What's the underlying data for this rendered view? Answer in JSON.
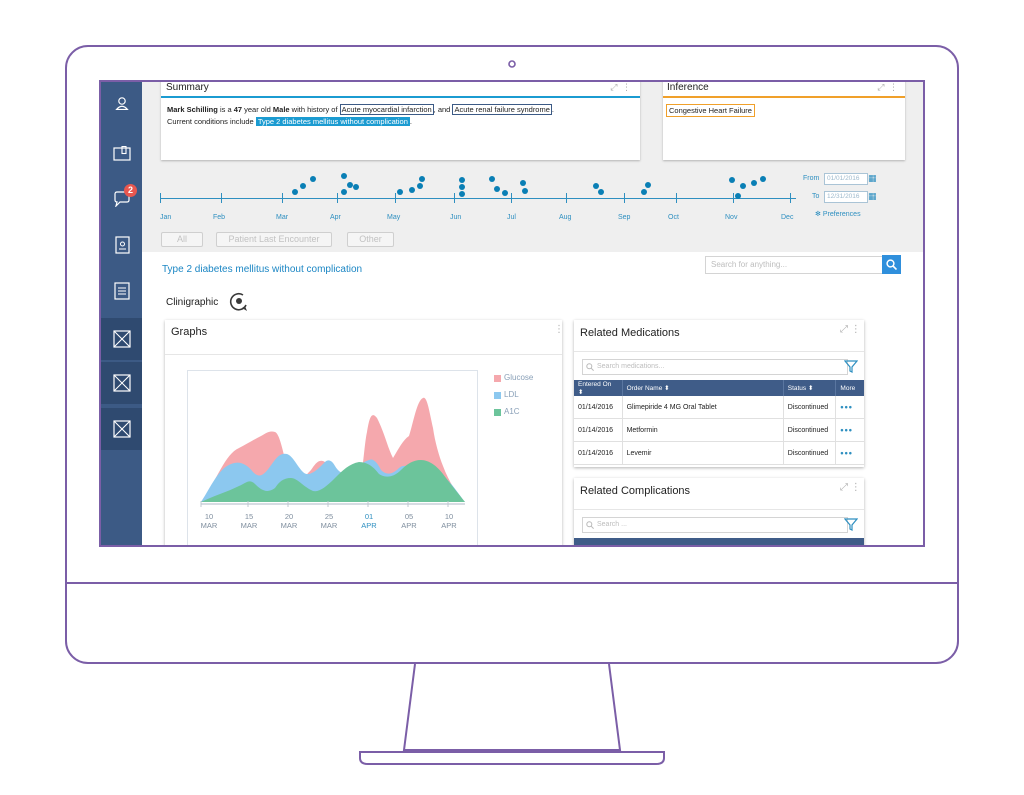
{
  "sidebar": {
    "items": [
      {
        "icon": "user-icon"
      },
      {
        "icon": "document-icon"
      },
      {
        "icon": "chat-icon",
        "badge": "2"
      },
      {
        "icon": "contacts-icon"
      },
      {
        "icon": "list-icon"
      },
      {
        "icon": "placeholder-icon"
      },
      {
        "icon": "placeholder-icon"
      },
      {
        "icon": "placeholder-icon"
      }
    ]
  },
  "summary": {
    "title": "Summary",
    "patient_name": "Mark Schilling",
    "is_a": " is a ",
    "age": "47",
    "year_old": " year old ",
    "sex": "Male",
    "with_history": " with history of ",
    "condition1": "Acute myocardial infarction",
    "and": ", and ",
    "condition2": "Acute renal failure syndrome",
    "period": ".",
    "current_prefix": "Current conditions include ",
    "current_condition": "Type 2 diabetes mellitus without complication",
    "current_suffix": "."
  },
  "inference": {
    "title": "Inference",
    "tag": "Congestive Heart Failure"
  },
  "timeline": {
    "months": [
      "Jan",
      "Feb",
      "Mar",
      "Apr",
      "May",
      "Jun",
      "Jul",
      "Aug",
      "Sep",
      "Oct",
      "Nov",
      "Dec"
    ],
    "from_label": "From",
    "from_value": "01/01/2016",
    "to_label": "To",
    "to_value": "12/31/2016",
    "preferences_label": "Preferences",
    "filters": [
      "All",
      "Patient Last Encounter",
      "Other"
    ]
  },
  "main": {
    "condition_title": "Type 2 diabetes mellitus without complication",
    "search_placeholder": "Search for anything...",
    "clinigraphic_label": "Clinigraphic"
  },
  "graphs": {
    "title": "Graphs",
    "legend": [
      {
        "name": "Glucose",
        "color": "#f5a8ad"
      },
      {
        "name": "LDL",
        "color": "#8cc8ef"
      },
      {
        "name": "A1C",
        "color": "#6cc49b"
      }
    ],
    "x_ticks": [
      {
        "day": "10",
        "month": "MAR"
      },
      {
        "day": "15",
        "month": "MAR"
      },
      {
        "day": "20",
        "month": "MAR"
      },
      {
        "day": "25",
        "month": "MAR"
      },
      {
        "day": "01",
        "month": "APR"
      },
      {
        "day": "05",
        "month": "APR"
      },
      {
        "day": "10",
        "month": "APR"
      }
    ],
    "highlight_color": "#2e8fc0"
  },
  "medications": {
    "title": "Related Medications",
    "search_placeholder": "Search medications...",
    "columns": [
      "Entered On ⬍",
      "Order Name ⬍",
      "Status ⬍",
      "More"
    ],
    "rows": [
      {
        "date": "01/14/2016",
        "name": "Glimepiride 4 MG Oral Tablet",
        "status": "Discontinued",
        "more": "•••"
      },
      {
        "date": "01/14/2016",
        "name": "Metformin",
        "status": "Discontinued",
        "more": "•••"
      },
      {
        "date": "01/14/2016",
        "name": "Levemir",
        "status": "Discontinued",
        "more": "•••"
      }
    ]
  },
  "complications": {
    "title": "Related Complications",
    "search_placeholder": "Search ..."
  },
  "colors": {
    "frame": "#7b5ea7",
    "sidebar": "#3c5a85",
    "accent": "#1b86c4",
    "inference_accent": "#f0a02a",
    "summary_accent": "#1b9bd1"
  }
}
